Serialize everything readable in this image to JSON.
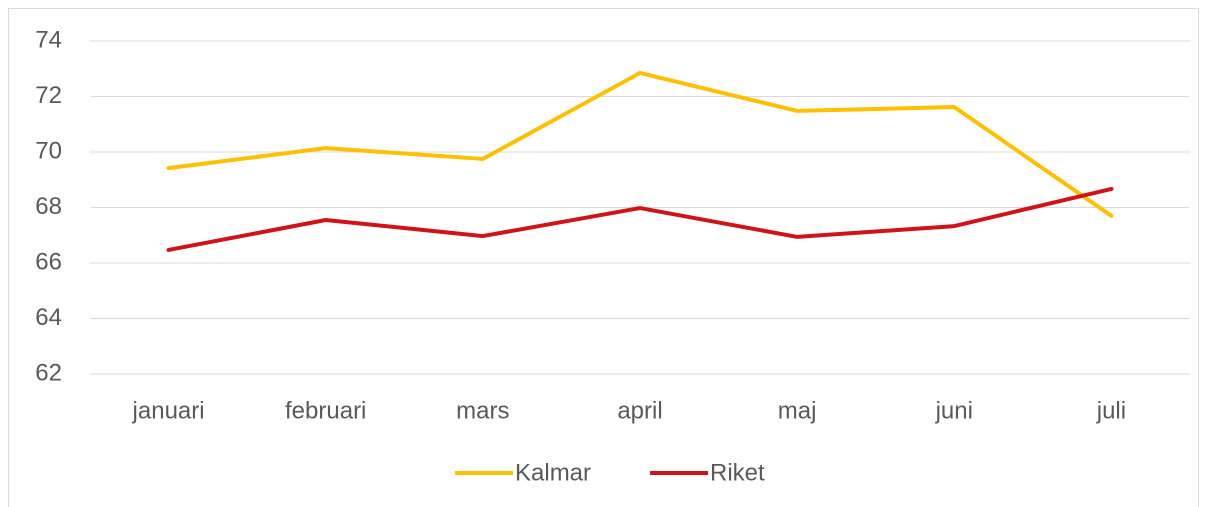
{
  "chart_data": {
    "type": "line",
    "categories": [
      "januari",
      "februari",
      "mars",
      "april",
      "maj",
      "juni",
      "juli"
    ],
    "series": [
      {
        "name": "Kalmar",
        "color": "#ffc000",
        "values": [
          69.42,
          70.14,
          69.75,
          72.85,
          71.48,
          71.62,
          67.7
        ]
      },
      {
        "name": "Riket",
        "color": "#d0121b",
        "values": [
          66.47,
          67.55,
          66.97,
          67.98,
          66.94,
          67.33,
          68.67
        ]
      }
    ],
    "ylim": [
      62,
      74
    ],
    "yticks": [
      62,
      64,
      66,
      68,
      70,
      72,
      74
    ],
    "grid": true,
    "legend": "bottom"
  }
}
